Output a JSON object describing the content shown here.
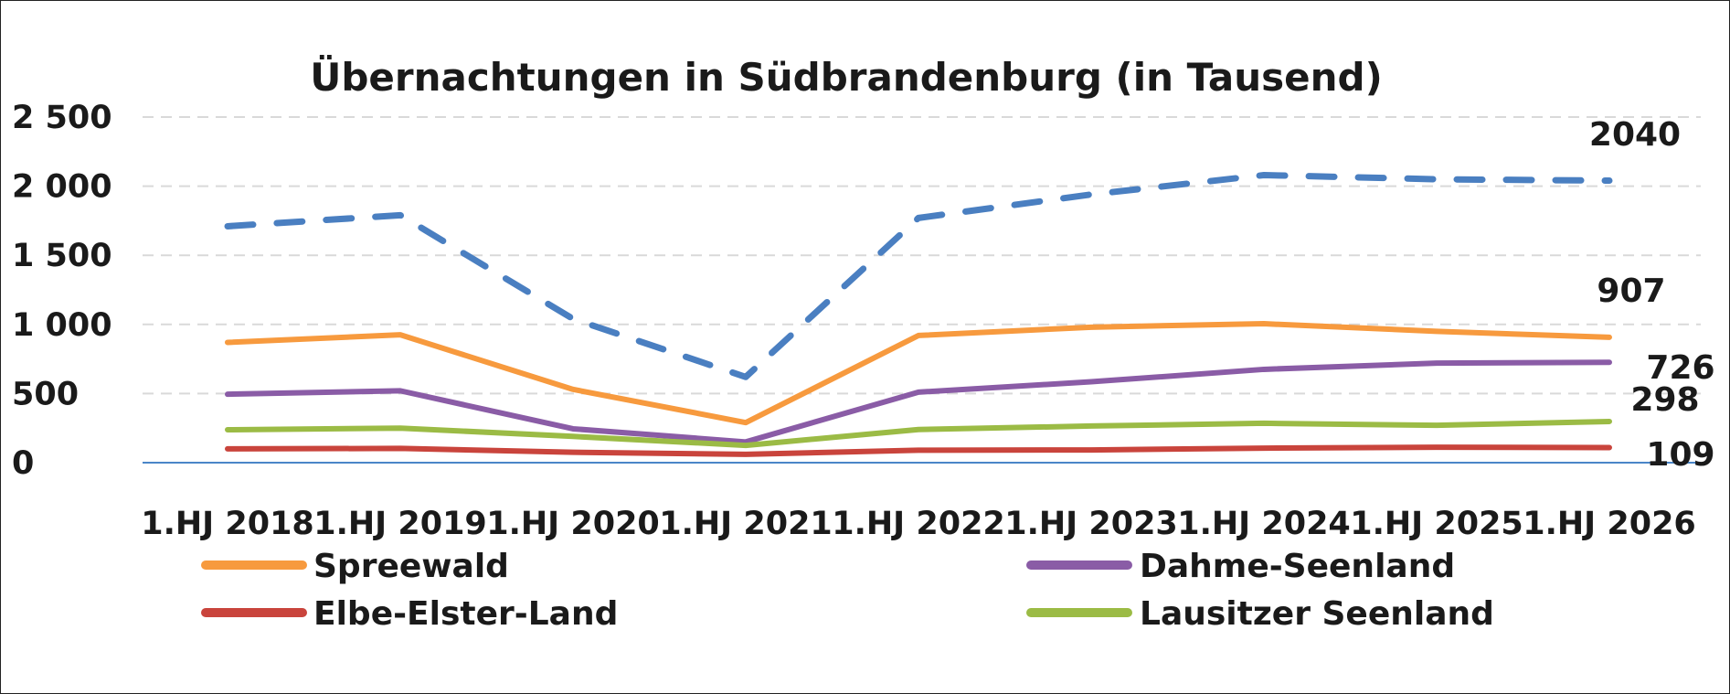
{
  "chart_data": {
    "type": "line",
    "title": "Übernachtungen in Südbrandenburg (in Tausend)",
    "xlabel": "",
    "ylabel": "",
    "categories": [
      "1.HJ 2018",
      "1.HJ 2019",
      "1.HJ 2020",
      "1.HJ 2021",
      "1.HJ 2022",
      "1.HJ 2023",
      "1.HJ 2024",
      "1.HJ 2025",
      "1.HJ 2026"
    ],
    "ylim": [
      0,
      2500
    ],
    "yticks": [
      0,
      500,
      1000,
      1500,
      2000,
      2500
    ],
    "ytick_labels": [
      "0",
      "500",
      "1 000",
      "1 500",
      "2 000",
      "2 500"
    ],
    "grid": "horizontal dashed",
    "legend_position": "bottom",
    "series": [
      {
        "values": [
          1710,
          1790,
          1040,
          620,
          1770,
          1940,
          2080,
          2050,
          2040
        ],
        "color": "#4a7fc1",
        "style": "dashed",
        "end_label": "2040",
        "in_legend": false
      },
      {
        "name": "Spreewald",
        "values": [
          870,
          925,
          530,
          290,
          920,
          980,
          1005,
          950,
          907
        ],
        "color": "#f79a3e",
        "style": "solid",
        "end_label": "907",
        "in_legend": true
      },
      {
        "name": "Dahme-Seenland",
        "values": [
          495,
          520,
          245,
          150,
          510,
          585,
          675,
          720,
          726
        ],
        "color": "#8a5ca6",
        "style": "solid",
        "end_label": "726",
        "in_legend": true
      },
      {
        "name": "Elbe-Elster-Land",
        "values": [
          100,
          103,
          75,
          60,
          90,
          92,
          105,
          112,
          109
        ],
        "color": "#c9443c",
        "style": "solid",
        "end_label": "109",
        "in_legend": true
      },
      {
        "name": "Lausitzer Seenland",
        "values": [
          238,
          250,
          190,
          125,
          240,
          265,
          285,
          270,
          298
        ],
        "color": "#9bbb45",
        "style": "solid",
        "end_label": "298",
        "in_legend": true
      }
    ]
  }
}
